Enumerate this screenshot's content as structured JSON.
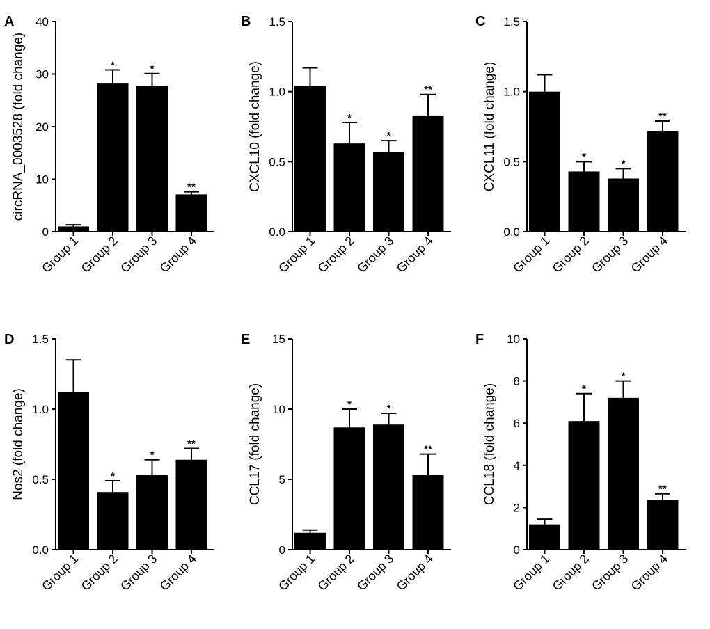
{
  "chart_data": [
    {
      "type": "bar",
      "panel": "A",
      "ylabel": "circRNA_0003528 (fold change)",
      "ylim": [
        0,
        40
      ],
      "yticks": [
        "0",
        "10",
        "20",
        "30",
        "40"
      ],
      "tickvals": [
        0,
        10,
        20,
        30,
        40
      ],
      "categories": [
        "Group 1",
        "Group 2",
        "Group 3",
        "Group 4"
      ],
      "values": [
        1.0,
        28.2,
        27.8,
        7.1
      ],
      "error_upper": [
        1.3,
        30.8,
        30.1,
        7.6
      ],
      "significance": [
        "",
        "*",
        "*",
        "**"
      ]
    },
    {
      "type": "bar",
      "panel": "B",
      "ylabel": "CXCL10 (fold change)",
      "ylim": [
        0,
        1.5
      ],
      "yticks": [
        "0.0",
        "0.5",
        "1.0",
        "1.5"
      ],
      "tickvals": [
        0,
        0.5,
        1.0,
        1.5
      ],
      "categories": [
        "Group 1",
        "Group 2",
        "Group 3",
        "Group 4"
      ],
      "values": [
        1.04,
        0.63,
        0.57,
        0.83
      ],
      "error_upper": [
        1.17,
        0.78,
        0.65,
        0.98
      ],
      "significance": [
        "",
        "*",
        "*",
        "**"
      ]
    },
    {
      "type": "bar",
      "panel": "C",
      "ylabel": "CXCL11 (fold change)",
      "ylim": [
        0,
        1.5
      ],
      "yticks": [
        "0.0",
        "0.5",
        "1.0",
        "1.5"
      ],
      "tickvals": [
        0,
        0.5,
        1.0,
        1.5
      ],
      "categories": [
        "Group 1",
        "Group 2",
        "Group 3",
        "Group 4"
      ],
      "values": [
        1.0,
        0.43,
        0.38,
        0.72
      ],
      "error_upper": [
        1.12,
        0.5,
        0.45,
        0.79
      ],
      "significance": [
        "",
        "*",
        "*",
        "**"
      ]
    },
    {
      "type": "bar",
      "panel": "D",
      "ylabel": "Nos2 (fold change)",
      "ylim": [
        0,
        1.5
      ],
      "yticks": [
        "0.0",
        "0.5",
        "1.0",
        "1.5"
      ],
      "tickvals": [
        0,
        0.5,
        1.0,
        1.5
      ],
      "categories": [
        "Group 1",
        "Group 2",
        "Group 3",
        "Group 4"
      ],
      "values": [
        1.12,
        0.41,
        0.53,
        0.64
      ],
      "error_upper": [
        1.35,
        0.49,
        0.64,
        0.72
      ],
      "significance": [
        "",
        "*",
        "*",
        "**"
      ]
    },
    {
      "type": "bar",
      "panel": "E",
      "ylabel": "CCL17 (fold change)",
      "ylim": [
        0,
        15
      ],
      "yticks": [
        "0",
        "5",
        "10",
        "15"
      ],
      "tickvals": [
        0,
        5,
        10,
        15
      ],
      "categories": [
        "Group 1",
        "Group 2",
        "Group 3",
        "Group 4"
      ],
      "values": [
        1.2,
        8.7,
        8.9,
        5.3
      ],
      "error_upper": [
        1.4,
        10.0,
        9.7,
        6.8
      ],
      "significance": [
        "",
        "*",
        "*",
        "**"
      ]
    },
    {
      "type": "bar",
      "panel": "F",
      "ylabel": "CCL18 (fold change)",
      "ylim": [
        0,
        10
      ],
      "yticks": [
        "0",
        "2",
        "4",
        "6",
        "8",
        "10"
      ],
      "tickvals": [
        0,
        2,
        4,
        6,
        8,
        10
      ],
      "categories": [
        "Group 1",
        "Group 2",
        "Group 3",
        "Group 4"
      ],
      "values": [
        1.2,
        6.1,
        7.2,
        2.35
      ],
      "error_upper": [
        1.45,
        7.4,
        8.0,
        2.65
      ],
      "significance": [
        "",
        "*",
        "*",
        "**"
      ]
    }
  ]
}
